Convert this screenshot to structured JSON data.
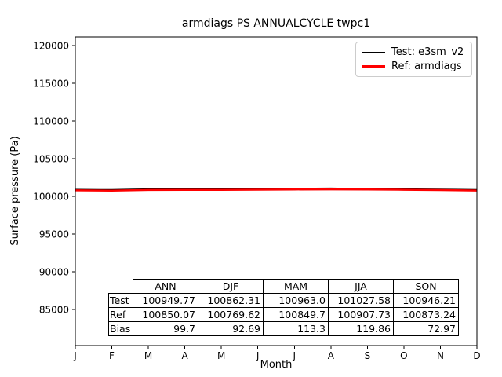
{
  "chart_data": {
    "type": "line",
    "title": "armdiags PS ANNUALCYCLE twpc1",
    "xlabel": "Month",
    "ylabel": "Surface pressure (Pa)",
    "x_tick_labels": [
      "J",
      "F",
      "M",
      "A",
      "M",
      "J",
      "J",
      "A",
      "S",
      "O",
      "N",
      "D"
    ],
    "yticks": [
      85000,
      90000,
      95000,
      100000,
      105000,
      110000,
      115000,
      120000
    ],
    "ytick_labels": [
      "85000",
      "90000",
      "95000",
      "100000",
      "105000",
      "110000",
      "115000",
      "120000"
    ],
    "ylim": [
      80200,
      121150
    ],
    "grid": false,
    "legend_position": "upper right",
    "series": [
      {
        "name": "Test: e3sm_v2",
        "color": "#000000",
        "values": [
          100880,
          100850,
          100950,
          100975,
          100965,
          101000,
          101030,
          101050,
          100990,
          100945,
          100905,
          100855
        ]
      },
      {
        "name": "Ref: armdiags",
        "color": "#ff0000",
        "values": [
          100790,
          100755,
          100840,
          100860,
          100850,
          100880,
          100910,
          100930,
          100915,
          100870,
          100835,
          100765
        ]
      }
    ]
  },
  "stats_table": {
    "col_headers": [
      "ANN",
      "DJF",
      "MAM",
      "JJA",
      "SON"
    ],
    "rows": [
      {
        "label": "Test",
        "values": [
          "100949.77",
          "100862.31",
          "100963.0",
          "101027.58",
          "100946.21"
        ]
      },
      {
        "label": "Ref",
        "values": [
          "100850.07",
          "100769.62",
          "100849.7",
          "100907.73",
          "100873.24"
        ]
      },
      {
        "label": "Bias",
        "values": [
          "99.7",
          "92.69",
          "113.3",
          "119.86",
          "72.97"
        ]
      }
    ]
  }
}
